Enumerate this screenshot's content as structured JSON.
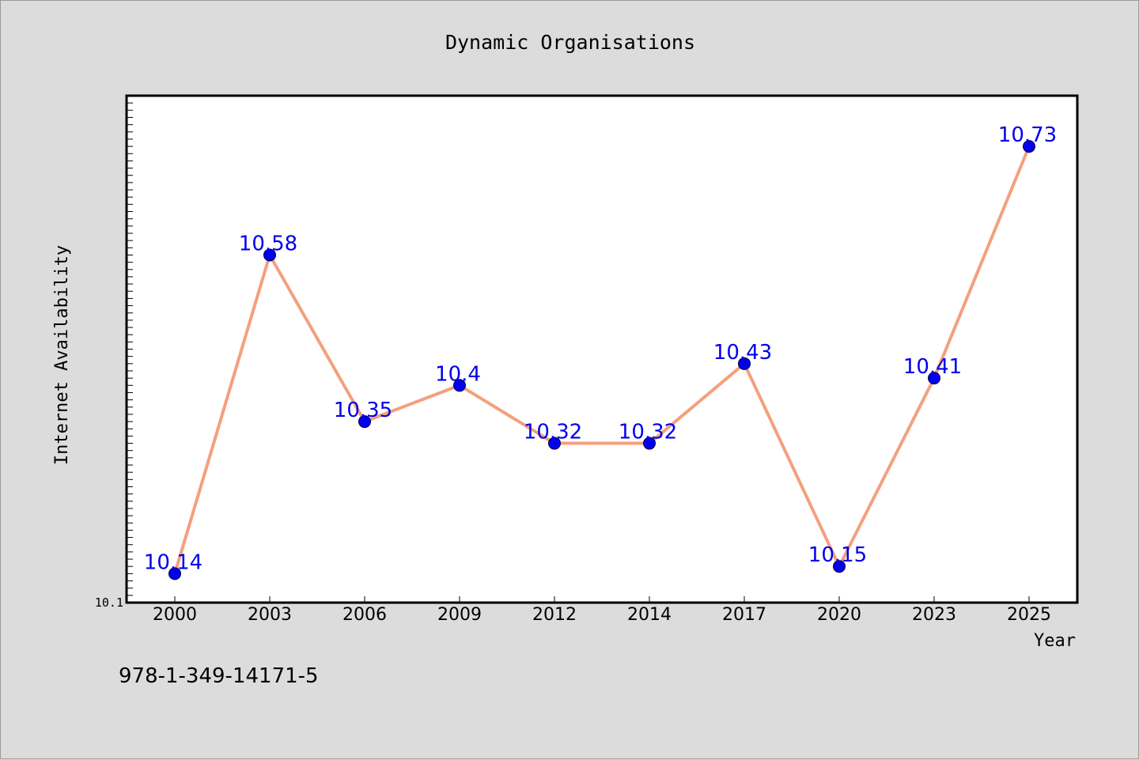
{
  "chart_data": {
    "type": "line",
    "title": "Dynamic Organisations",
    "xlabel": "Year",
    "ylabel": "Internet Availability",
    "categories": [
      "2000",
      "2003",
      "2006",
      "2009",
      "2012",
      "2014",
      "2017",
      "2020",
      "2023",
      "2025"
    ],
    "series": [
      {
        "values": [
          10.14,
          10.58,
          10.35,
          10.4,
          10.32,
          10.32,
          10.43,
          10.15,
          10.41,
          10.73
        ]
      }
    ],
    "data_labels": [
      "10.14",
      "10.58",
      "10.35",
      "10.4",
      "10.32",
      "10.32",
      "10.43",
      "10.15",
      "10.41",
      "10.73"
    ],
    "y_tick_labels": [
      "10.1"
    ],
    "ylim": [
      10.1,
      10.8
    ],
    "grid": false,
    "colors": {
      "line": "#f4a07e",
      "marker": "#0000ee",
      "data_label": "#0000ee",
      "background": "#dcdcdc",
      "plot_background": "#ffffff"
    }
  },
  "footer_text": "978-1-349-14171-5"
}
